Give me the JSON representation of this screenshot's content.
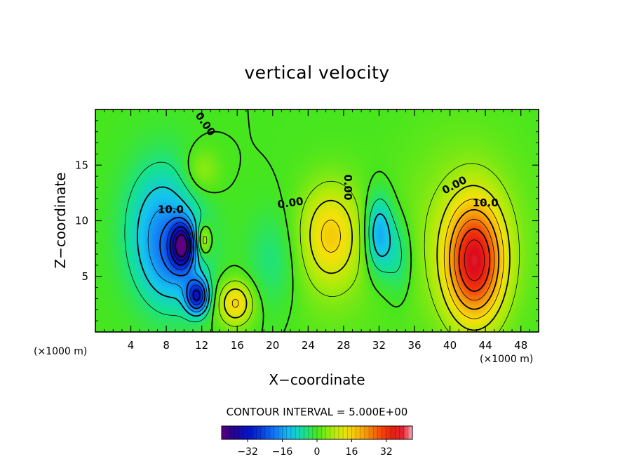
{
  "chart_data": {
    "type": "heatmap",
    "title": "vertical velocity",
    "xlabel": "X−coordinate",
    "ylabel": "Z−coordinate",
    "x_unit": "(×1000 m)",
    "z_unit": "(×1000 m)",
    "xlim": [
      0,
      50
    ],
    "ylim": [
      0,
      20
    ],
    "x_ticks": [
      4,
      8,
      12,
      16,
      20,
      24,
      28,
      32,
      36,
      40,
      44,
      48
    ],
    "x_tick_labels": [
      "4",
      "8",
      "12",
      "16",
      "20",
      "24",
      "28",
      "32",
      "36",
      "40",
      "44",
      "48"
    ],
    "y_ticks": [
      5,
      10,
      15
    ],
    "y_tick_labels": [
      "5",
      "10",
      "15"
    ],
    "contour_interval_text": "CONTOUR INTERVAL = 5.000E+00",
    "contour_interval": 5,
    "colorbar": {
      "range": [
        -44,
        44
      ],
      "ticks": [
        -32,
        -16,
        0,
        16,
        32
      ],
      "tick_labels": [
        "−32",
        "−16",
        "0",
        "16",
        "32"
      ]
    },
    "contour_labels": [
      {
        "text": "0.00",
        "x": 12.4,
        "z": 18.7,
        "angle": 55
      },
      {
        "text": "10.0",
        "x": 8.5,
        "z": 11.0,
        "angle": 0
      },
      {
        "text": "0.00",
        "x": 22.0,
        "z": 11.6,
        "angle": -8
      },
      {
        "text": "0.00",
        "x": 28.5,
        "z": 13.0,
        "angle": 90
      },
      {
        "text": "0.00",
        "x": 40.5,
        "z": 13.2,
        "angle": -28
      },
      {
        "text": "10.0",
        "x": 44.0,
        "z": 11.6,
        "angle": 0
      }
    ],
    "features": [
      {
        "x": 42.8,
        "z": 6.3,
        "value": 34,
        "sx": 2.2,
        "sz": 3.6
      },
      {
        "x": 41.5,
        "z": 8.8,
        "value": 6,
        "sx": 5.0,
        "sz": 6.0
      },
      {
        "x": 26.5,
        "z": 8.8,
        "value": 14,
        "sx": 2.3,
        "sz": 3.0
      },
      {
        "x": 27.0,
        "z": 6.0,
        "value": 3,
        "sx": 3.5,
        "sz": 5.0
      },
      {
        "x": 15.8,
        "z": 2.6,
        "value": 16,
        "sx": 1.4,
        "sz": 1.4
      },
      {
        "x": 12.2,
        "z": 8.2,
        "value": 13,
        "sx": 0.6,
        "sz": 1.0
      },
      {
        "x": 12.0,
        "z": 14.5,
        "value": 6,
        "sx": 1.4,
        "sz": 1.4
      },
      {
        "x": 9.8,
        "z": 7.8,
        "value": -30,
        "sx": 0.9,
        "sz": 1.4
      },
      {
        "x": 11.5,
        "z": 3.2,
        "value": -27,
        "sx": 0.9,
        "sz": 1.1
      },
      {
        "x": 7.5,
        "z": 9.5,
        "value": -14,
        "sx": 2.8,
        "sz": 4.0
      },
      {
        "x": 9.0,
        "z": 6.0,
        "value": -10,
        "sx": 2.5,
        "sz": 3.0
      },
      {
        "x": 32.0,
        "z": 8.8,
        "value": -16,
        "sx": 1.1,
        "sz": 2.4
      },
      {
        "x": 34.2,
        "z": 6.8,
        "value": -7,
        "sx": 1.1,
        "sz": 2.5
      },
      {
        "x": 20.0,
        "z": 6.5,
        "value": -5,
        "sx": 2.0,
        "sz": 3.0
      }
    ]
  }
}
